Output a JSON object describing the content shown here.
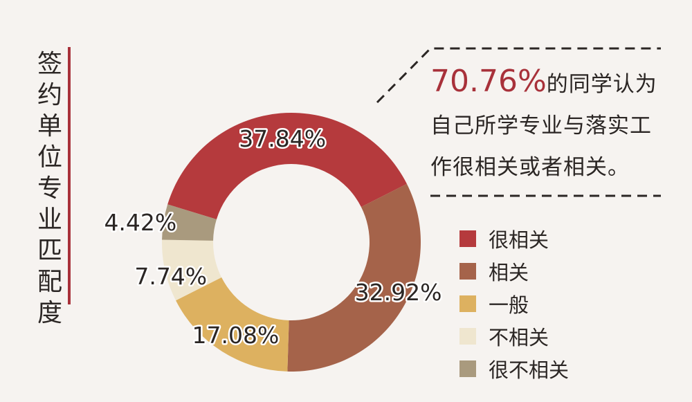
{
  "title_chars": [
    "签",
    "约",
    "单",
    "位",
    "专",
    "业",
    "匹",
    "配",
    "度"
  ],
  "callout": {
    "percent": "70.76%",
    "line1": "的同学认为",
    "line2": "自己所学专业与落实工",
    "line3": "作很相关或者相关。"
  },
  "chart_data": {
    "type": "pie",
    "style": "donut",
    "title": "签约单位专业匹配度",
    "categories": [
      "很相关",
      "相关",
      "一般",
      "不相关",
      "很不相关"
    ],
    "values": [
      37.84,
      32.92,
      17.08,
      7.74,
      4.42
    ],
    "labels": [
      "37.84%",
      "32.92%",
      "17.08%",
      "7.74%",
      "4.42%"
    ],
    "colors": [
      "#b53a3d",
      "#a5634a",
      "#ddb160",
      "#efe6cf",
      "#a99a7e"
    ],
    "legend_position": "right"
  }
}
